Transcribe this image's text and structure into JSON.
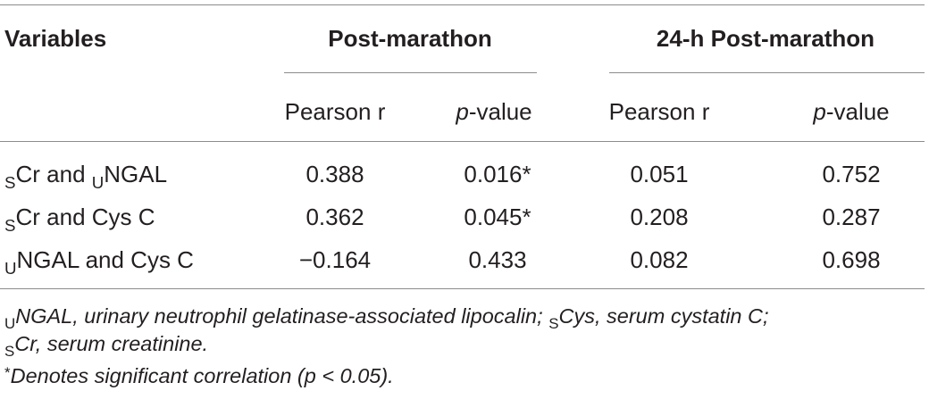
{
  "table": {
    "headers": {
      "variables": "Variables",
      "group1": "Post-marathon",
      "group2": "24-h Post-marathon"
    },
    "subheaders": {
      "g1_col1": "Pearson r",
      "g1_col2_italic": "p",
      "g1_col2_rest": "-value",
      "g2_col1": "Pearson r",
      "g2_col2_italic": "p",
      "g2_col2_rest": "-value"
    },
    "rows": [
      {
        "label_parts": {
          "a_sub": "S",
          "a": "Cr and ",
          "b_sub": "U",
          "b": "NGAL"
        },
        "post_r": "0.388",
        "post_p": "0.016*",
        "h24_r": "0.051",
        "h24_p": "0.752"
      },
      {
        "label_parts": {
          "a_sub": "S",
          "a": "Cr and Cys C"
        },
        "post_r": "0.362",
        "post_p": "0.045*",
        "h24_r": "0.208",
        "h24_p": "0.287"
      },
      {
        "label_parts": {
          "a_sub": "U",
          "a": "NGAL and Cys C"
        },
        "post_r": "−0.164",
        "post_p": "0.433",
        "h24_r": "0.082",
        "h24_p": "0.698"
      }
    ]
  },
  "footnotes": {
    "line1": {
      "s1_sub": "U",
      "s1": "NGAL, urinary neutrophil gelatinase-associated lipocalin; ",
      "s2_sub": "S",
      "s2": "Cys, serum cystatin C;"
    },
    "line2": {
      "s1_sub": "S",
      "s1": "Cr, serum creatinine."
    },
    "line3": {
      "mark": "*",
      "text": "Denotes significant correlation (p < 0.05)."
    }
  }
}
